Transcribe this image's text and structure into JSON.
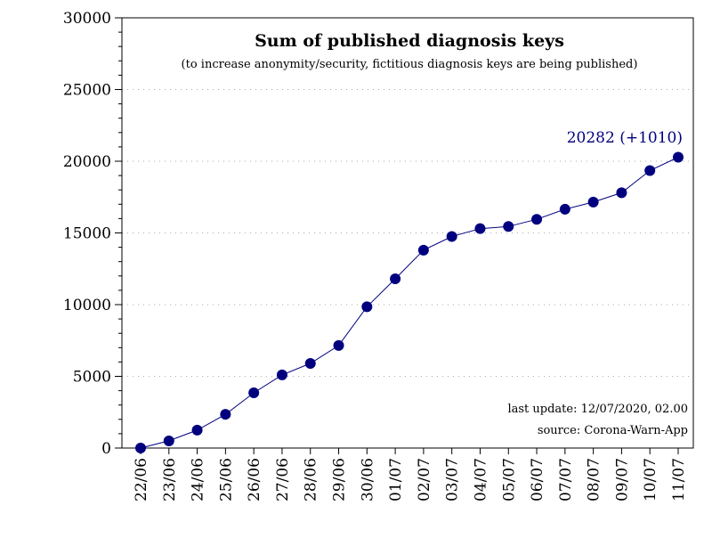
{
  "chart_data": {
    "type": "line",
    "title": "Sum of published diagnosis keys",
    "subtitle": "(to increase anonymity/security, fictitious diagnosis keys are being published)",
    "xlabel": "",
    "ylabel": "",
    "categories": [
      "22/06",
      "23/06",
      "24/06",
      "25/06",
      "26/06",
      "27/06",
      "28/06",
      "29/06",
      "30/06",
      "01/07",
      "02/07",
      "03/07",
      "04/07",
      "05/07",
      "06/07",
      "07/07",
      "08/07",
      "09/07",
      "10/07",
      "11/07"
    ],
    "series": [
      {
        "values": [
          0,
          500,
          1250,
          2350,
          3850,
          5100,
          5900,
          7150,
          9850,
          11800,
          13800,
          14750,
          15300,
          15450,
          15950,
          16650,
          17150,
          17800,
          19350,
          20282
        ]
      }
    ],
    "ylim": [
      0,
      30000
    ],
    "yticks": [
      0,
      5000,
      10000,
      15000,
      20000,
      25000,
      30000
    ],
    "y_minor_step": 1000,
    "grid": "horizontal dotted at major y ticks",
    "annotation_last": "20282 (+1010)",
    "footnote_update": "last update: 12/07/2020, 02.00",
    "footnote_source": "source: Corona-Warn-App",
    "colors": {
      "series": "#00007f",
      "grid": "#aaaaaa",
      "axis": "#000000"
    }
  }
}
